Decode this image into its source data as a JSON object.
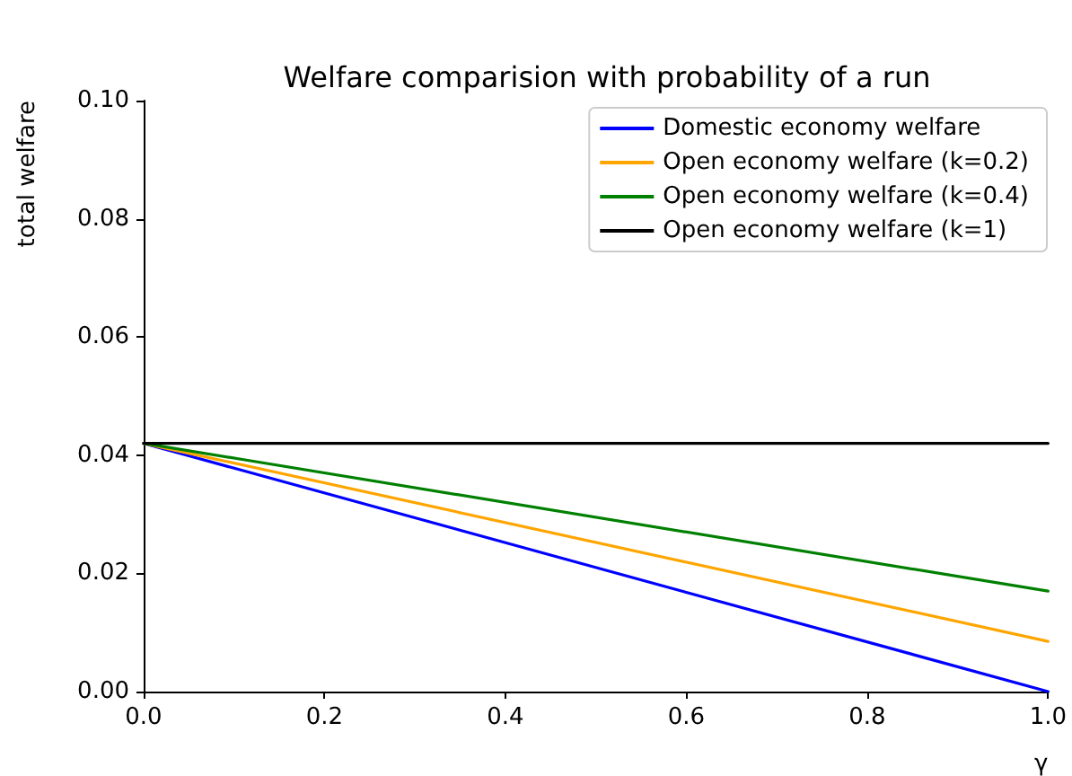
{
  "chart_data": {
    "type": "line",
    "title": "Welfare comparision with probability of a run",
    "xlabel": "γ",
    "ylabel": "total welfare",
    "x": [
      0,
      1
    ],
    "series": [
      {
        "name": "Domestic economy welfare",
        "color": "#0000ff",
        "values": [
          0.042,
          0.0
        ]
      },
      {
        "name": "Open economy welfare (k=0.2)",
        "color": "#ffa500",
        "values": [
          0.042,
          0.0085
        ]
      },
      {
        "name": "Open economy welfare (k=0.4)",
        "color": "#008000",
        "values": [
          0.042,
          0.017
        ]
      },
      {
        "name": "Open economy welfare (k=1)",
        "color": "#000000",
        "values": [
          0.042,
          0.042
        ]
      }
    ],
    "xlim": [
      0,
      1
    ],
    "xticks": [
      {
        "value": 0,
        "label": "0.0"
      },
      {
        "value": 0.2,
        "label": "0.2"
      },
      {
        "value": 0.4,
        "label": "0.4"
      },
      {
        "value": 0.6,
        "label": "0.6"
      },
      {
        "value": 0.8,
        "label": "0.8"
      },
      {
        "value": 1,
        "label": "1.0"
      }
    ],
    "ylim": [
      0,
      0.1
    ],
    "yticks": [
      {
        "value": 0,
        "label": "0.00"
      },
      {
        "value": 0.02,
        "label": "0.02"
      },
      {
        "value": 0.04,
        "label": "0.04"
      },
      {
        "value": 0.06,
        "label": "0.06"
      },
      {
        "value": 0.08,
        "label": "0.08"
      },
      {
        "value": 0.1,
        "label": "0.10"
      }
    ],
    "grid": false,
    "legend": "top right",
    "marker": "none",
    "line_style": "solid"
  }
}
